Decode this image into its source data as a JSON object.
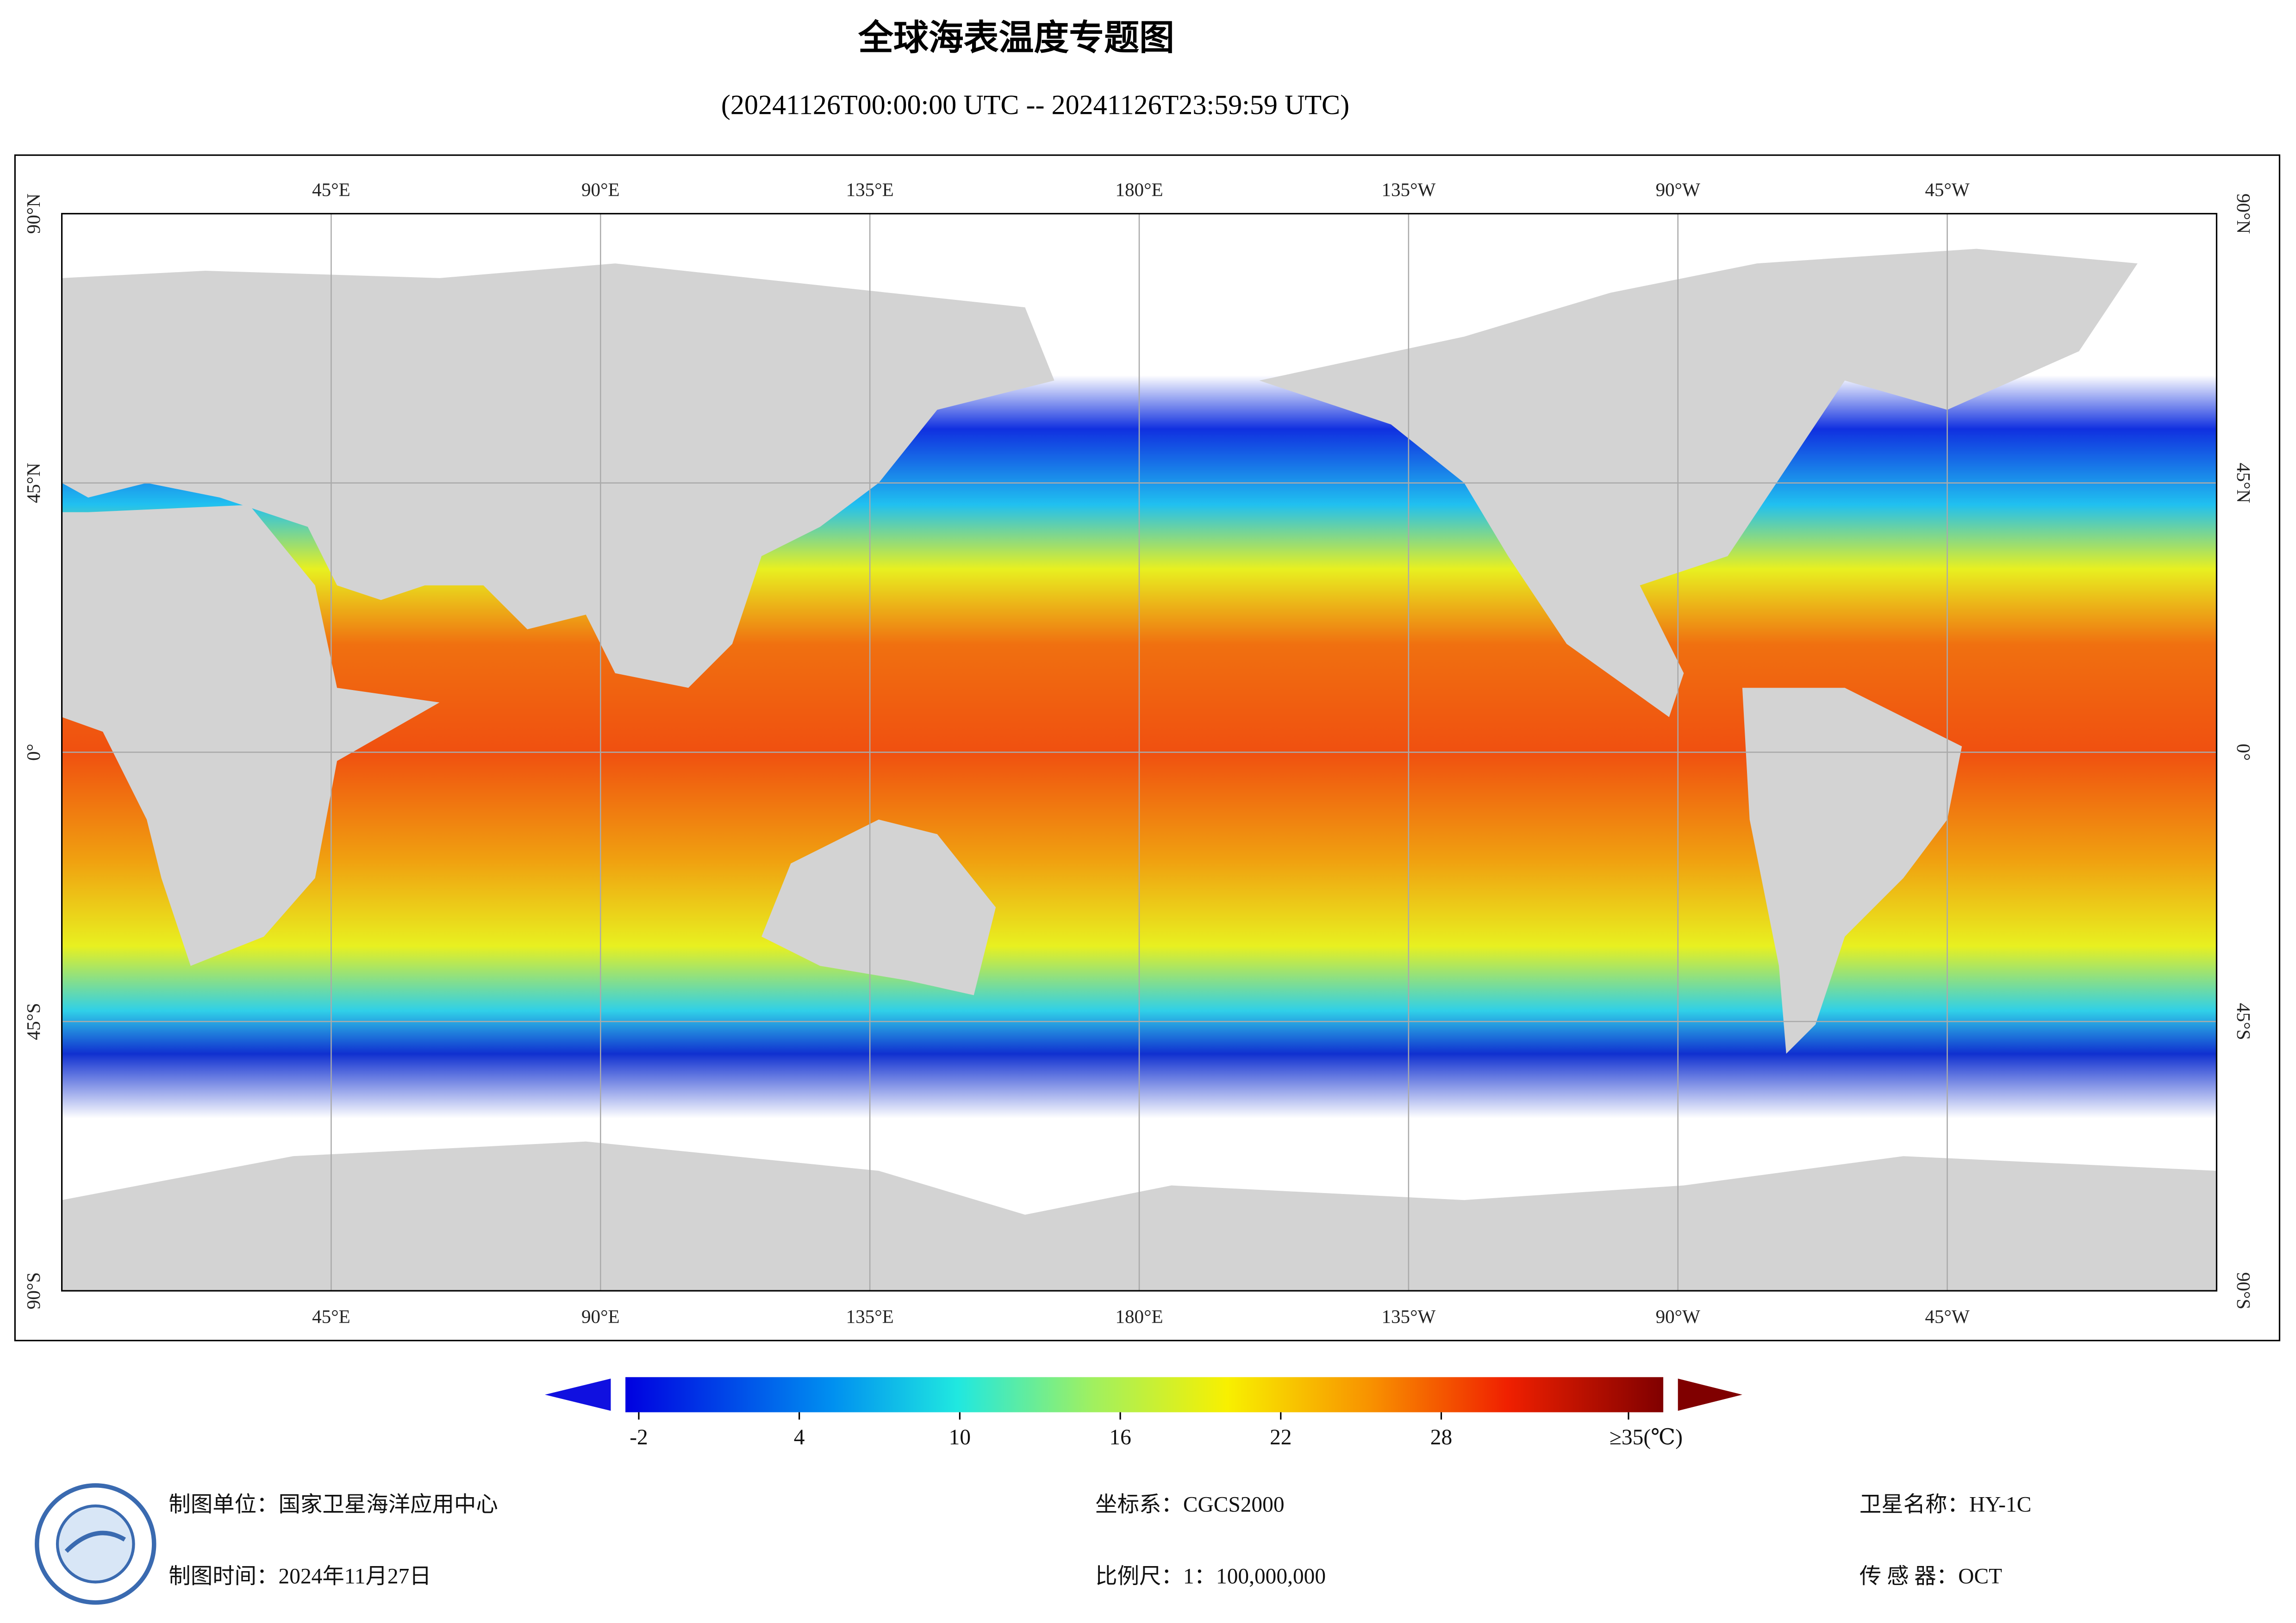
{
  "title": "全球海表温度专题图",
  "subtitle": "(20241126T00:00:00 UTC -- 20241126T23:59:59 UTC)",
  "map": {
    "lon_range": [
      0,
      360
    ],
    "lat_range": [
      -90,
      90
    ],
    "lon_ticks": [
      {
        "value": 45,
        "label": "45°E"
      },
      {
        "value": 90,
        "label": "90°E"
      },
      {
        "value": 135,
        "label": "135°E"
      },
      {
        "value": 180,
        "label": "180°E"
      },
      {
        "value": 225,
        "label": "135°W"
      },
      {
        "value": 270,
        "label": "90°W"
      },
      {
        "value": 315,
        "label": "45°W"
      }
    ],
    "lat_ticks": [
      {
        "value": 90,
        "label": "90°N"
      },
      {
        "value": 45,
        "label": "45°N"
      },
      {
        "value": 0,
        "label": "0°"
      },
      {
        "value": -45,
        "label": "45°S"
      },
      {
        "value": -90,
        "label": "90°S"
      }
    ]
  },
  "colorbar": {
    "range": [
      -2.5,
      36.3
    ],
    "ticks": [
      -2,
      4,
      10,
      16,
      22,
      28
    ],
    "max": {
      "value": 35,
      "label": "≥35(℃)"
    }
  },
  "footer": {
    "unit": "制图单位：国家卫星海洋应用中心",
    "time": "制图时间：2024年11月27日",
    "crs": "坐标系：CGCS2000",
    "scale": "比例尺：1：100,000,000",
    "satellite": "卫星名称：HY-1C",
    "sensor": "传 感 器：OCT"
  }
}
